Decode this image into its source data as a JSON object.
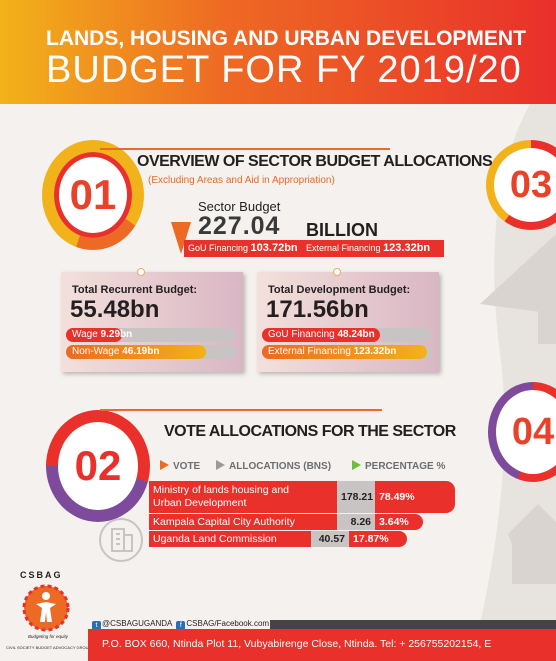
{
  "header": {
    "line1": "LANDS, HOUSING AND URBAN DEVELOPMENT",
    "line2": "BUDGET FOR FY 2019/20"
  },
  "section1": {
    "number": "01",
    "title": "OVERVIEW OF SECTOR BUDGET ALLOCATIONS",
    "subtitle": "(Excluding Areas and Aid in Appropriation)",
    "sector_budget_label": "Sector Budget",
    "sector_budget_value": "227.04",
    "sector_budget_unit": "BILLION",
    "gou_label": "GoU Financing",
    "gou_value": "103.72bn",
    "external_label": "External Financing",
    "external_value": "123.32bn"
  },
  "recurrent": {
    "title": "Total Recurrent Budget:",
    "value": "55.48bn",
    "wage_label": "Wage",
    "wage_value": "9.29bn",
    "wage_share": 0.167,
    "nonwage_label": "Non-Wage",
    "nonwage_value": "46.19bn",
    "nonwage_share": 0.833
  },
  "development": {
    "title": "Total Development Budget:",
    "value": "171.56bn",
    "gou_label": "GoU Financing",
    "gou_value": "48.24bn",
    "gou_share": 0.281,
    "external_label": "External Financing",
    "external_value": "123.32bn",
    "external_share": 0.719
  },
  "section2": {
    "number": "02",
    "title": "VOTE ALLOCATIONS FOR THE SECTOR",
    "legend": {
      "vote": "VOTE",
      "allocations": "ALLOCATIONS (BNS)",
      "percentage": "PERCENTAGE %"
    },
    "rows": [
      {
        "name_line1": "Ministry of lands housing and",
        "name_line2": "Urban Development",
        "allocation": "178.21",
        "percentage": "78.49%"
      },
      {
        "name_line1": "Kampala Capital City Authority",
        "name_line2": "",
        "allocation": "8.26",
        "percentage": "3.64%"
      },
      {
        "name_line1": "Uganda Land Commission",
        "name_line2": "",
        "allocation": "40.57",
        "percentage": "17.87%"
      }
    ]
  },
  "right_numbers": {
    "a": "03",
    "b": "04"
  },
  "logo": {
    "name": "CSBAG",
    "tagline": "Budgeting for equity",
    "org": "CIVIL SOCIETY BUDGET ADVOCACY GROUP"
  },
  "footer": {
    "twitter": "@CSBAGUGANDA",
    "facebook": "CSBAG/Facebook.com",
    "address": "P.O. BOX 660,  Ntinda Plot 11, Vubyabirenge Close, Ntinda. Tel: + 256755202154,  E"
  },
  "colors": {
    "red": "#e9302b",
    "orange": "#ec6a23",
    "yellow": "#f2b21a",
    "grey": "#c9c4c4",
    "green": "#6cbf3a"
  }
}
